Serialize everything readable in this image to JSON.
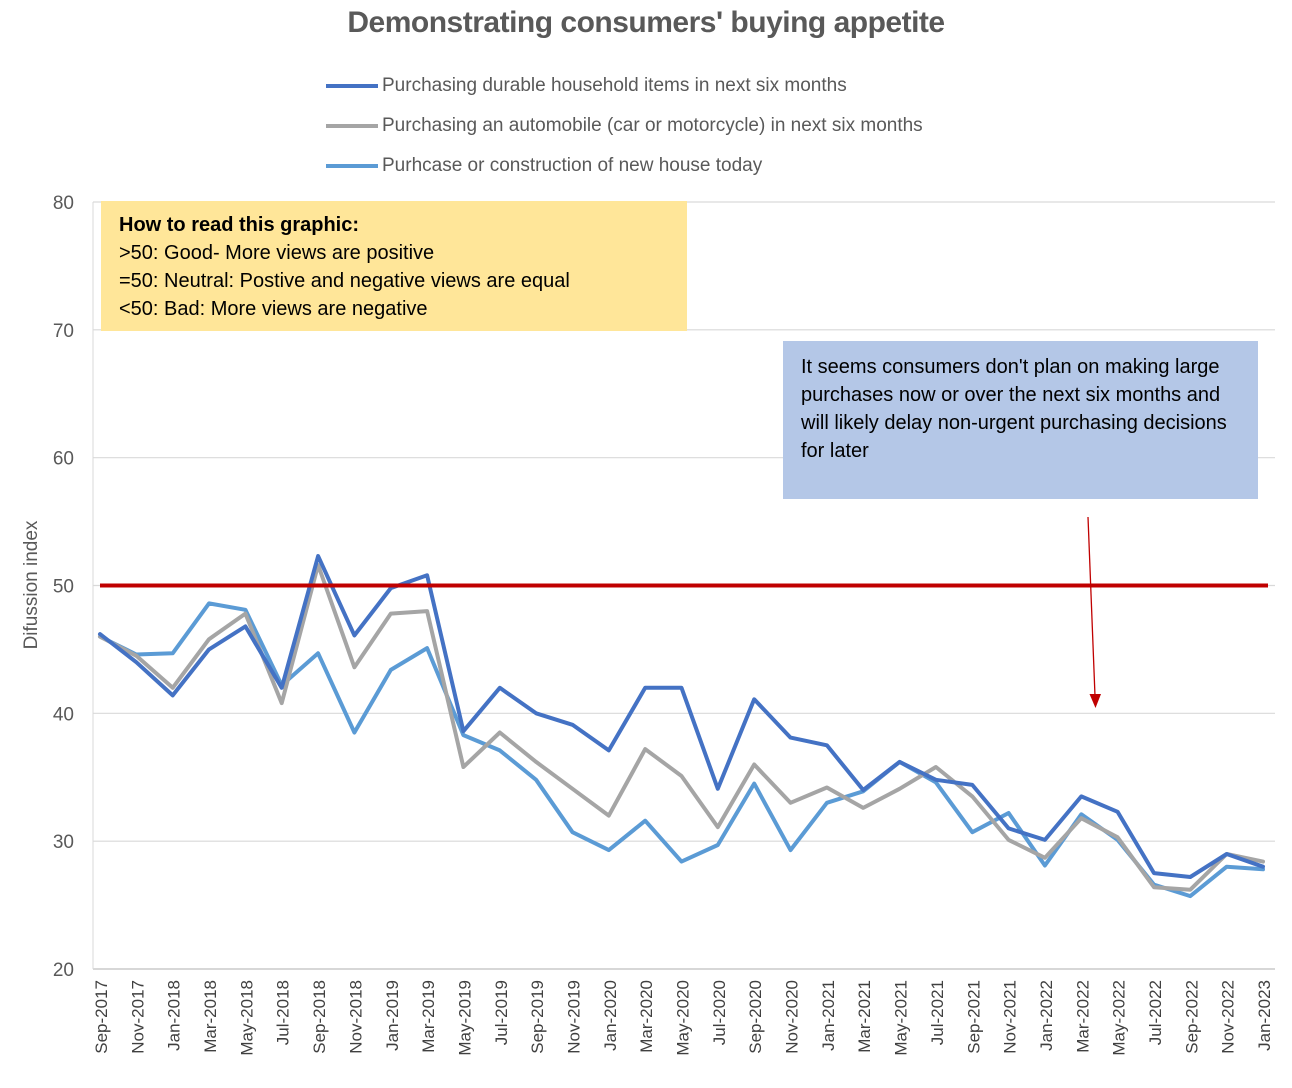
{
  "chart_data": {
    "type": "line",
    "title": "Demonstrating consumers' buying appetite",
    "ylabel": "Difussion index",
    "xlabel": "",
    "ylim": [
      20,
      80
    ],
    "yticks": [
      20,
      30,
      40,
      50,
      60,
      70,
      80
    ],
    "grid": true,
    "legend_position": "top",
    "categories": [
      "Sep-2017",
      "Nov-2017",
      "Jan-2018",
      "Mar-2018",
      "May-2018",
      "Jul-2018",
      "Sep-2018",
      "Nov-2018",
      "Jan-2019",
      "Mar-2019",
      "May-2019",
      "Jul-2019",
      "Sep-2019",
      "Nov-2019",
      "Jan-2020",
      "Mar-2020",
      "May-2020",
      "Jul-2020",
      "Sep-2020",
      "Nov-2020",
      "Jan-2021",
      "Mar-2021",
      "May-2021",
      "Jul-2021",
      "Sep-2021",
      "Nov-2021",
      "Jan-2022",
      "Mar-2022",
      "May-2022",
      "Jul-2022",
      "Sep-2022",
      "Nov-2022",
      "Jan-2023"
    ],
    "series": [
      {
        "name": "Purchasing durable household items in next six months",
        "color": "#4472c4",
        "values": [
          46.2,
          44.0,
          41.4,
          45.0,
          46.8,
          42.0,
          52.3,
          46.1,
          49.8,
          50.8,
          38.6,
          42.0,
          40.0,
          39.1,
          37.1,
          42.0,
          42.0,
          34.1,
          41.1,
          38.1,
          37.5,
          34.0,
          36.2,
          34.8,
          34.4,
          31.0,
          30.1,
          33.5,
          32.3,
          27.5,
          27.2,
          29.0,
          28.0
        ]
      },
      {
        "name": "Purchasing an automobile (car or motorcycle) in next six months",
        "color": "#a5a5a5",
        "values": [
          46.0,
          44.5,
          42.0,
          45.8,
          47.8,
          40.8,
          51.6,
          43.6,
          47.8,
          48.0,
          35.8,
          38.5,
          36.2,
          34.1,
          32.0,
          37.2,
          35.1,
          31.1,
          36.0,
          33.0,
          34.2,
          32.6,
          34.1,
          35.8,
          33.5,
          30.1,
          28.7,
          31.8,
          30.3,
          26.4,
          26.2,
          29.0,
          28.4
        ]
      },
      {
        "name": "Purhcase or construction of new house today",
        "color": "#5b9bd5",
        "values": [
          46.0,
          44.6,
          44.7,
          48.6,
          48.1,
          42.2,
          44.7,
          38.5,
          43.4,
          45.1,
          38.3,
          37.1,
          34.8,
          30.7,
          29.3,
          31.6,
          28.4,
          29.7,
          34.5,
          29.3,
          33.0,
          33.9,
          36.2,
          34.6,
          30.7,
          32.2,
          28.1,
          32.1,
          30.1,
          26.6,
          25.7,
          28.0,
          27.8
        ]
      }
    ],
    "reference_line": {
      "value": 50,
      "color": "#c00000"
    },
    "annotations": [
      {
        "id": "howto",
        "heading": "How to read this graphic:",
        "lines": [
          ">50: Good- More views are positive",
          "=50: Neutral: Postive and negative views are equal",
          "<50: Bad: More views are negative"
        ],
        "color": "#ffe699"
      },
      {
        "id": "note",
        "text": "It seems consumers don't plan on making large purchases now or over the next six months and will likely delay non-urgent purchasing decisions for later",
        "color": "#b4c7e7",
        "arrow_color": "#c00000"
      }
    ]
  }
}
